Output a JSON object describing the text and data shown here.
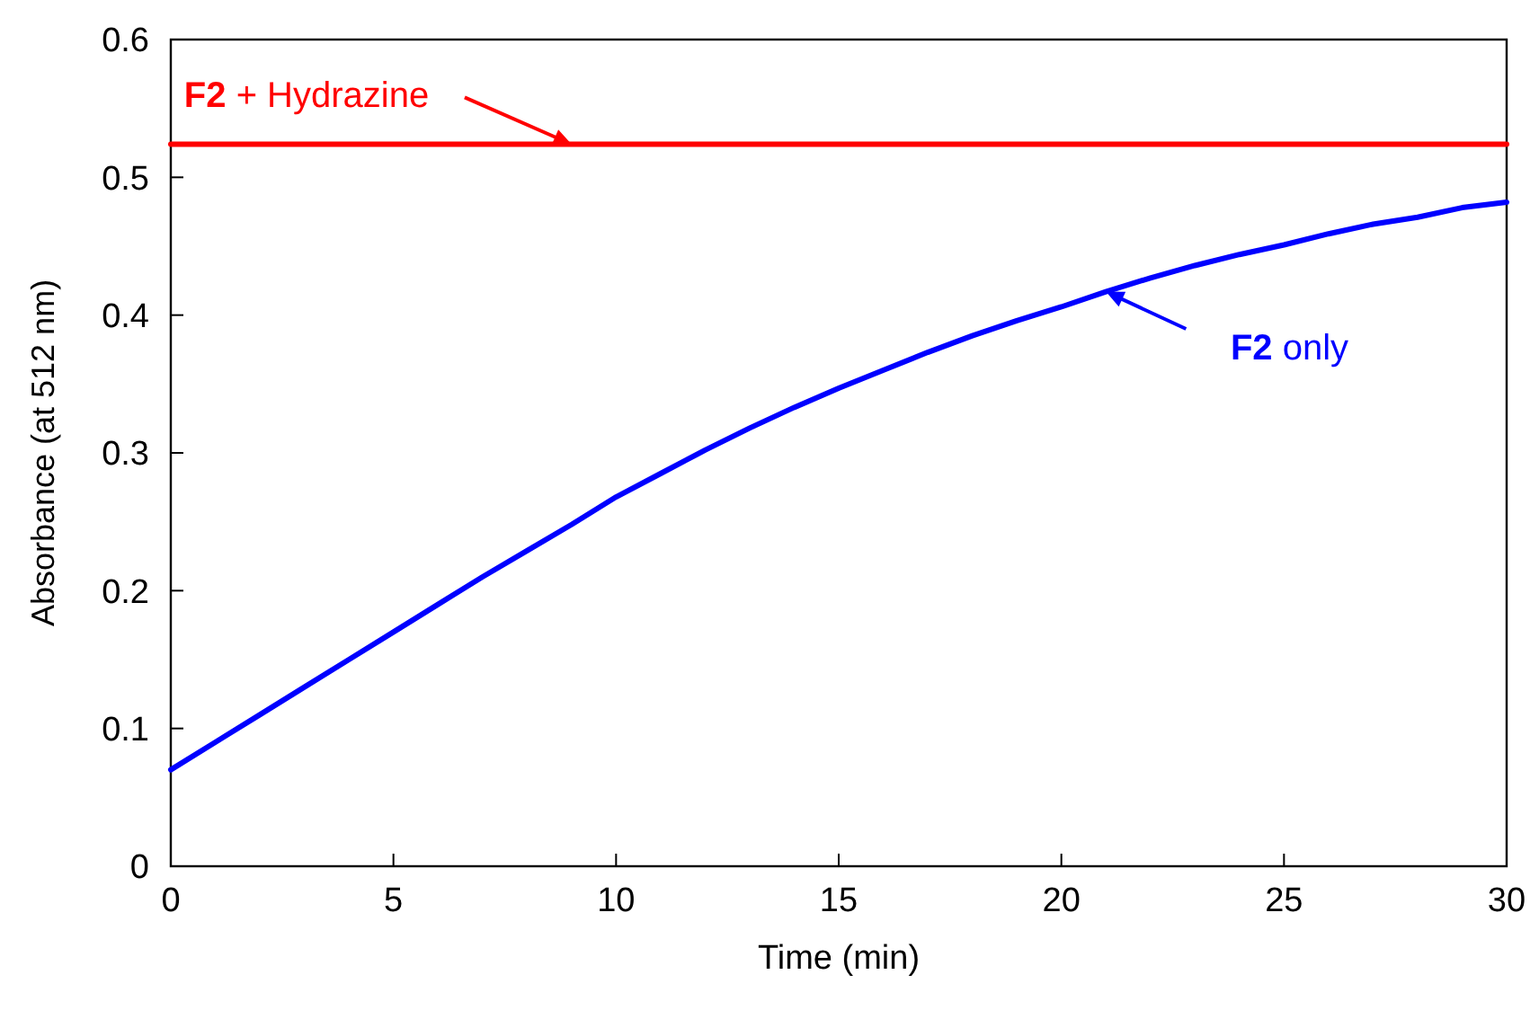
{
  "chart_data": {
    "type": "line",
    "xlabel": "Time (min)",
    "ylabel": "Absorbance (at 512 nm)",
    "xlim": [
      0,
      30
    ],
    "ylim": [
      0,
      0.6
    ],
    "xticks": [
      0,
      5,
      10,
      15,
      20,
      25,
      30
    ],
    "yticks": [
      0,
      0.1,
      0.2,
      0.3,
      0.4,
      0.5,
      0.6
    ],
    "grid": false,
    "marker": "none",
    "line_style": "solid",
    "x": [
      0,
      1,
      2,
      3,
      4,
      5,
      6,
      7,
      8,
      9,
      10,
      11,
      12,
      13,
      14,
      15,
      16,
      17,
      18,
      19,
      20,
      21,
      22,
      23,
      24,
      25,
      26,
      27,
      28,
      29,
      30
    ],
    "series": [
      {
        "color": "#ff0000",
        "values": [
          0.524,
          0.524,
          0.524,
          0.524,
          0.524,
          0.524,
          0.524,
          0.524,
          0.524,
          0.524,
          0.524,
          0.524,
          0.524,
          0.524,
          0.524,
          0.524,
          0.524,
          0.524,
          0.524,
          0.524,
          0.524,
          0.524,
          0.524,
          0.524,
          0.524,
          0.524,
          0.524,
          0.524,
          0.524,
          0.524,
          0.524
        ]
      },
      {
        "color": "#0000ff",
        "values": [
          0.07,
          0.09,
          0.11,
          0.13,
          0.15,
          0.17,
          0.19,
          0.21,
          0.229,
          0.248,
          0.268,
          0.285,
          0.302,
          0.318,
          0.333,
          0.347,
          0.36,
          0.373,
          0.385,
          0.396,
          0.406,
          0.417,
          0.427,
          0.436,
          0.444,
          0.451,
          0.459,
          0.466,
          0.471,
          0.478,
          0.482
        ]
      }
    ],
    "annotations": [
      {
        "text": "F2 + Hydrazine",
        "x": 9,
        "y": 0.524
      },
      {
        "text": "F2 only",
        "x": 21,
        "y": 0.417
      }
    ]
  }
}
